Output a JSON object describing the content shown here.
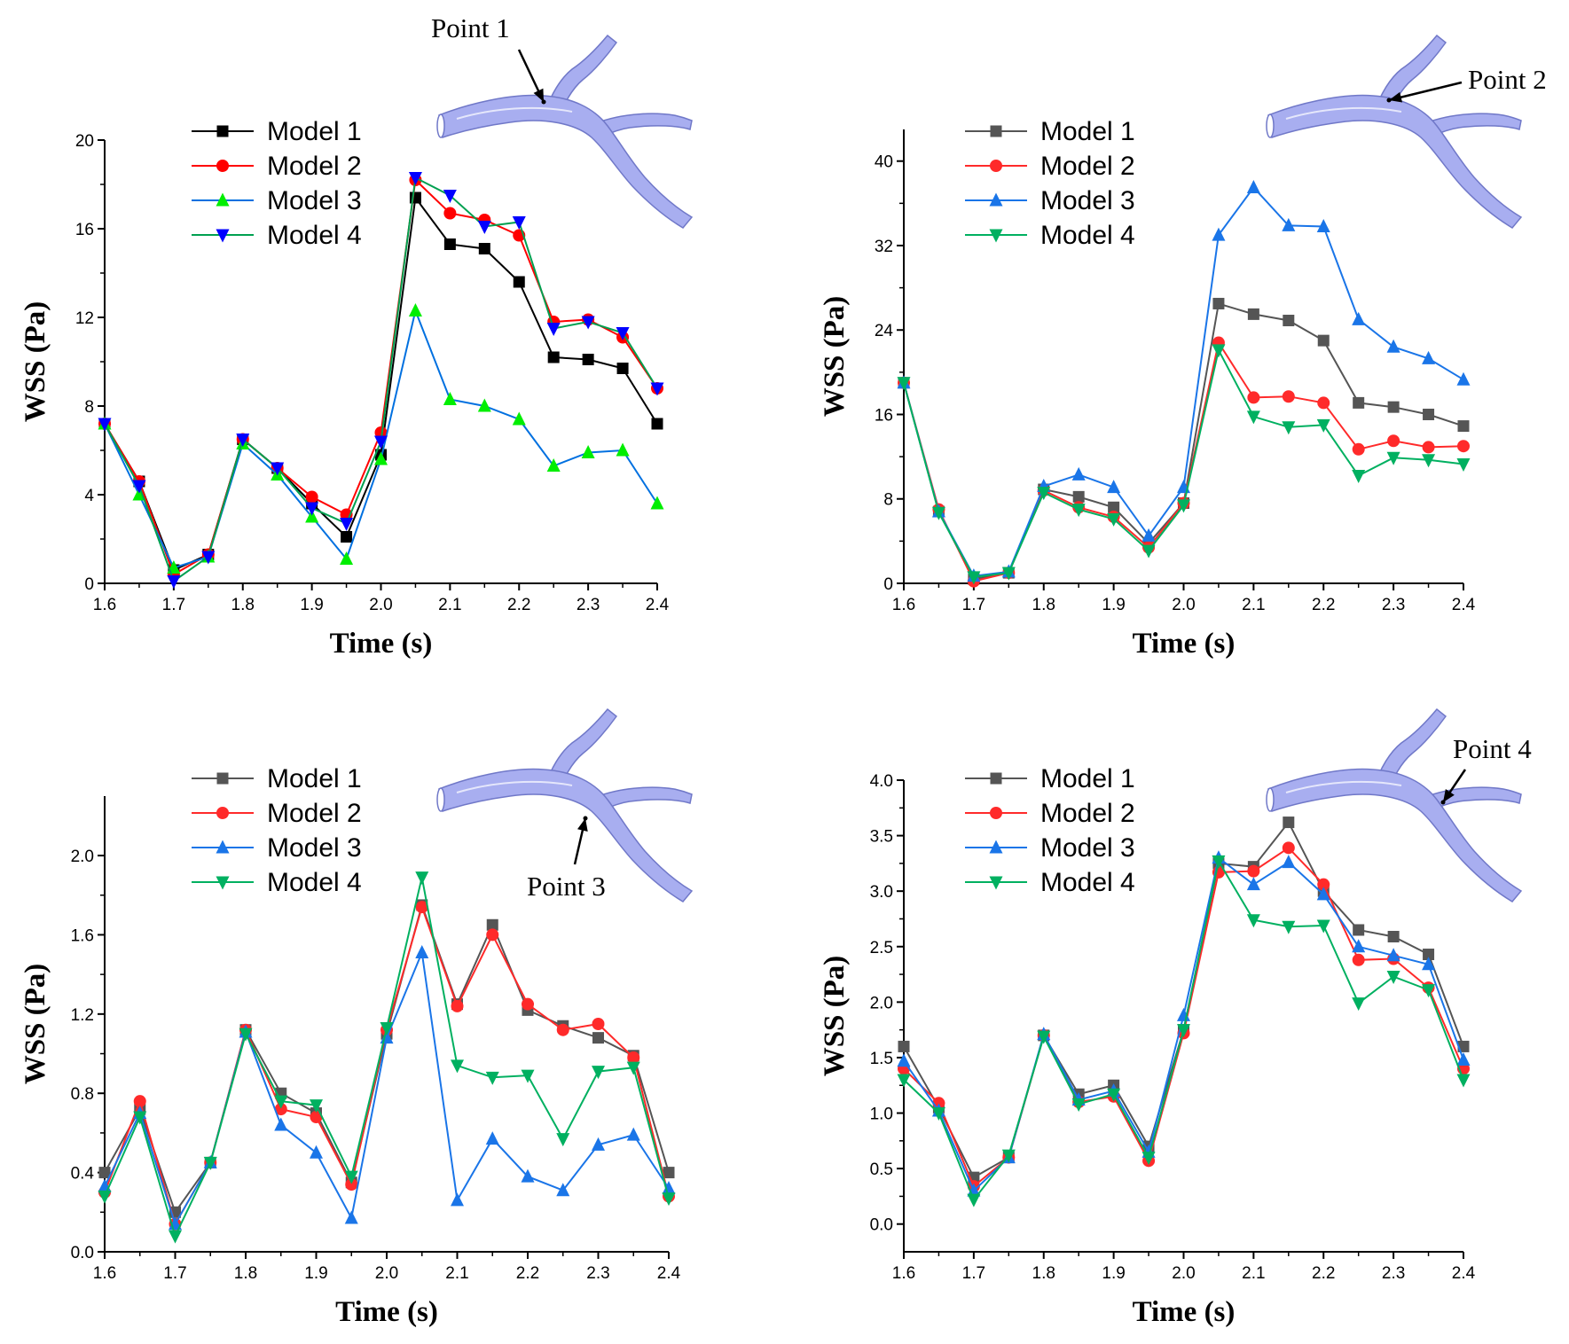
{
  "figure": {
    "description_domain": "WSS time series at four points of an aortic arch model"
  },
  "colors": {
    "model_1": "#000000",
    "model_2": "#ff0000",
    "model_3": "#0070e0",
    "model_4": "#00a050",
    "vessel_fill": "#a8aef0",
    "vessel_stroke": "#7078c8"
  },
  "chart_data": [
    {
      "type": "line",
      "panel": "Point 1",
      "annotation": "Point 1",
      "xlabel": "Time (s)",
      "ylabel": "WSS (Pa)",
      "xlim": [
        1.6,
        2.4
      ],
      "ylim": [
        0,
        20
      ],
      "xticks": [
        "1.6",
        "1.7",
        "1.8",
        "1.9",
        "2.0",
        "2.1",
        "2.2",
        "2.3",
        "2.4"
      ],
      "yticks": [
        "0",
        "4",
        "8",
        "12",
        "16",
        "20"
      ],
      "x": [
        1.6,
        1.65,
        1.7,
        1.75,
        1.8,
        1.85,
        1.9,
        1.95,
        2.0,
        2.05,
        2.1,
        2.15,
        2.2,
        2.25,
        2.3,
        2.35,
        2.4
      ],
      "series": [
        {
          "name": "Model 1",
          "color": "#000000",
          "marker": "square",
          "values": [
            7.2,
            4.6,
            0.6,
            1.3,
            6.5,
            5.2,
            3.6,
            2.1,
            5.8,
            17.4,
            15.3,
            15.1,
            13.6,
            10.2,
            10.1,
            9.7,
            7.2
          ]
        },
        {
          "name": "Model 2",
          "color": "#ff0000",
          "marker": "circle",
          "values": [
            7.2,
            4.6,
            0.4,
            1.3,
            6.5,
            5.2,
            3.9,
            3.1,
            6.8,
            18.2,
            16.7,
            16.4,
            15.7,
            11.8,
            11.9,
            11.1,
            8.8
          ]
        },
        {
          "name": "Model 3",
          "color": "#00ee00",
          "marker": "triangle-up",
          "line_color": "#0070e0",
          "values": [
            7.2,
            4.0,
            0.7,
            1.2,
            6.3,
            4.9,
            3.0,
            1.1,
            5.6,
            12.3,
            8.3,
            8.0,
            7.4,
            5.3,
            5.9,
            6.0,
            3.6
          ]
        },
        {
          "name": "Model 4",
          "color": "#0000ff",
          "marker": "triangle-down",
          "line_color": "#00a050",
          "values": [
            7.2,
            4.4,
            0.1,
            1.2,
            6.5,
            5.2,
            3.4,
            2.7,
            6.4,
            18.3,
            17.5,
            16.1,
            16.3,
            11.5,
            11.8,
            11.3,
            8.8
          ]
        }
      ]
    },
    {
      "type": "line",
      "panel": "Point 2",
      "annotation": "Point 2",
      "xlabel": "Time (s)",
      "ylabel": "WSS (Pa)",
      "xlim": [
        1.6,
        2.4
      ],
      "ylim": [
        0,
        43
      ],
      "xticks": [
        "1.6",
        "1.7",
        "1.8",
        "1.9",
        "2.0",
        "2.1",
        "2.2",
        "2.3",
        "2.4"
      ],
      "yticks": [
        "0",
        "8",
        "16",
        "24",
        "32",
        "40"
      ],
      "x": [
        1.6,
        1.65,
        1.7,
        1.75,
        1.8,
        1.85,
        1.9,
        1.95,
        2.0,
        2.05,
        2.1,
        2.15,
        2.2,
        2.25,
        2.3,
        2.35,
        2.4
      ],
      "series": [
        {
          "name": "Model 1",
          "color": "#555555",
          "marker": "square",
          "values": [
            19.0,
            6.8,
            0.4,
            1.0,
            8.9,
            8.2,
            7.2,
            3.8,
            7.6,
            26.5,
            25.5,
            24.9,
            23.0,
            17.1,
            16.7,
            16.0,
            14.9
          ]
        },
        {
          "name": "Model 2",
          "color": "#ff2a2a",
          "marker": "circle",
          "values": [
            19.0,
            7.0,
            0.2,
            1.0,
            8.8,
            7.2,
            6.3,
            3.4,
            7.6,
            22.8,
            17.6,
            17.7,
            17.1,
            12.7,
            13.5,
            12.9,
            13.0
          ]
        },
        {
          "name": "Model 3",
          "color": "#1a75e8",
          "marker": "triangle-up",
          "values": [
            19.0,
            6.8,
            0.7,
            1.1,
            9.2,
            10.3,
            9.1,
            4.5,
            9.1,
            33.0,
            37.5,
            33.9,
            33.8,
            25.0,
            22.4,
            21.3,
            19.3
          ]
        },
        {
          "name": "Model 4",
          "color": "#00b060",
          "marker": "triangle-down",
          "values": [
            19.0,
            6.7,
            0.6,
            1.0,
            8.6,
            7.0,
            6.1,
            3.1,
            7.4,
            22.1,
            15.8,
            14.8,
            15.0,
            10.2,
            11.9,
            11.7,
            11.3
          ]
        }
      ]
    },
    {
      "type": "line",
      "panel": "Point 3",
      "annotation": "Point 3",
      "xlabel": "Time (s)",
      "ylabel": "WSS (Pa)",
      "xlim": [
        1.6,
        2.4
      ],
      "ylim": [
        0,
        2.3
      ],
      "xticks": [
        "1.6",
        "1.7",
        "1.8",
        "1.9",
        "2.0",
        "2.1",
        "2.2",
        "2.3",
        "2.4"
      ],
      "yticks": [
        "0.0",
        "0.4",
        "0.8",
        "1.2",
        "1.6",
        "2.0"
      ],
      "x": [
        1.6,
        1.65,
        1.7,
        1.75,
        1.8,
        1.85,
        1.9,
        1.95,
        2.0,
        2.05,
        2.1,
        2.15,
        2.2,
        2.25,
        2.3,
        2.35,
        2.4
      ],
      "series": [
        {
          "name": "Model 1",
          "color": "#555555",
          "marker": "square",
          "values": [
            0.4,
            0.72,
            0.2,
            0.45,
            1.12,
            0.8,
            0.7,
            0.35,
            1.1,
            1.75,
            1.25,
            1.65,
            1.22,
            1.14,
            1.08,
            0.99,
            0.4
          ]
        },
        {
          "name": "Model 2",
          "color": "#ff2a2a",
          "marker": "circle",
          "values": [
            0.3,
            0.76,
            0.14,
            0.45,
            1.12,
            0.72,
            0.68,
            0.34,
            1.12,
            1.74,
            1.24,
            1.6,
            1.25,
            1.12,
            1.15,
            0.98,
            0.28
          ]
        },
        {
          "name": "Model 3",
          "color": "#1a75e8",
          "marker": "triangle-up",
          "values": [
            0.33,
            0.7,
            0.14,
            0.45,
            1.11,
            0.64,
            0.5,
            0.17,
            1.08,
            1.51,
            0.26,
            0.57,
            0.38,
            0.31,
            0.54,
            0.59,
            0.32
          ]
        },
        {
          "name": "Model 4",
          "color": "#00b060",
          "marker": "triangle-down",
          "values": [
            0.28,
            0.68,
            0.08,
            0.45,
            1.1,
            0.76,
            0.74,
            0.38,
            1.13,
            1.89,
            0.94,
            0.88,
            0.89,
            0.57,
            0.91,
            0.93,
            0.27
          ]
        }
      ]
    },
    {
      "type": "line",
      "panel": "Point 4",
      "annotation": "Point 4",
      "xlabel": "Time (s)",
      "ylabel": "WSS (Pa)",
      "xlim": [
        1.6,
        2.4
      ],
      "ylim": [
        -0.25,
        4.0
      ],
      "xticks": [
        "1.6",
        "1.7",
        "1.8",
        "1.9",
        "2.0",
        "2.1",
        "2.2",
        "2.3",
        "2.4"
      ],
      "yticks": [
        "0.0",
        "0.5",
        "1.0",
        "1.5",
        "2.0",
        "2.5",
        "3.0",
        "3.5",
        "4.0"
      ],
      "x": [
        1.6,
        1.65,
        1.7,
        1.75,
        1.8,
        1.85,
        1.9,
        1.95,
        2.0,
        2.05,
        2.1,
        2.15,
        2.2,
        2.25,
        2.3,
        2.35,
        2.4
      ],
      "series": [
        {
          "name": "Model 1",
          "color": "#555555",
          "marker": "square",
          "values": [
            1.6,
            1.05,
            0.42,
            0.6,
            1.7,
            1.17,
            1.25,
            0.7,
            1.75,
            3.25,
            3.22,
            3.62,
            3.0,
            2.65,
            2.59,
            2.43,
            1.6
          ]
        },
        {
          "name": "Model 2",
          "color": "#ff2a2a",
          "marker": "circle",
          "values": [
            1.4,
            1.09,
            0.34,
            0.6,
            1.7,
            1.1,
            1.15,
            0.57,
            1.72,
            3.17,
            3.18,
            3.39,
            3.06,
            2.38,
            2.39,
            2.13,
            1.4
          ]
        },
        {
          "name": "Model 3",
          "color": "#1a75e8",
          "marker": "triangle-up",
          "values": [
            1.47,
            1.02,
            0.3,
            0.6,
            1.71,
            1.12,
            1.2,
            0.65,
            1.88,
            3.3,
            3.06,
            3.26,
            2.97,
            2.5,
            2.42,
            2.34,
            1.48
          ]
        },
        {
          "name": "Model 4",
          "color": "#00b060",
          "marker": "triangle-down",
          "values": [
            1.3,
            1.0,
            0.22,
            0.62,
            1.69,
            1.08,
            1.17,
            0.6,
            1.75,
            3.27,
            2.74,
            2.68,
            2.69,
            1.99,
            2.23,
            2.11,
            1.3
          ]
        }
      ]
    }
  ]
}
